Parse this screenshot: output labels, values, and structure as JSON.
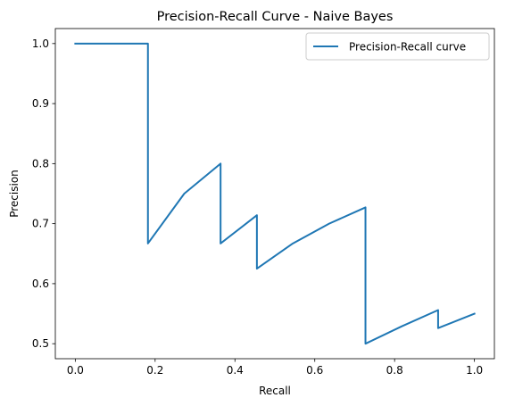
{
  "chart_data": {
    "type": "line",
    "title": "Precision-Recall Curve - Naive Bayes",
    "xlabel": "Recall",
    "ylabel": "Precision",
    "xlim": [
      -0.05,
      1.05
    ],
    "ylim": [
      0.475,
      1.025
    ],
    "x_ticks": [
      0.0,
      0.2,
      0.4,
      0.6,
      0.8,
      1.0
    ],
    "x_tick_labels": [
      "0.0",
      "0.2",
      "0.4",
      "0.6",
      "0.8",
      "1.0"
    ],
    "y_ticks": [
      0.5,
      0.6,
      0.7,
      0.8,
      0.9,
      1.0
    ],
    "y_tick_labels": [
      "0.5",
      "0.6",
      "0.7",
      "0.8",
      "0.9",
      "1.0"
    ],
    "grid": false,
    "legend": {
      "entries": [
        "Precision-Recall curve"
      ],
      "placement": "upper-right"
    },
    "series": [
      {
        "name": "Precision-Recall curve",
        "color": "#1f77b4",
        "points": [
          [
            0.0,
            1.0
          ],
          [
            0.182,
            1.0
          ],
          [
            0.182,
            0.667
          ],
          [
            0.273,
            0.75
          ],
          [
            0.364,
            0.8
          ],
          [
            0.364,
            0.667
          ],
          [
            0.455,
            0.714
          ],
          [
            0.455,
            0.625
          ],
          [
            0.545,
            0.667
          ],
          [
            0.636,
            0.7
          ],
          [
            0.727,
            0.727
          ],
          [
            0.727,
            0.5
          ],
          [
            0.818,
            0.529
          ],
          [
            0.909,
            0.556
          ],
          [
            0.909,
            0.526
          ],
          [
            1.0,
            0.55
          ]
        ]
      }
    ]
  }
}
